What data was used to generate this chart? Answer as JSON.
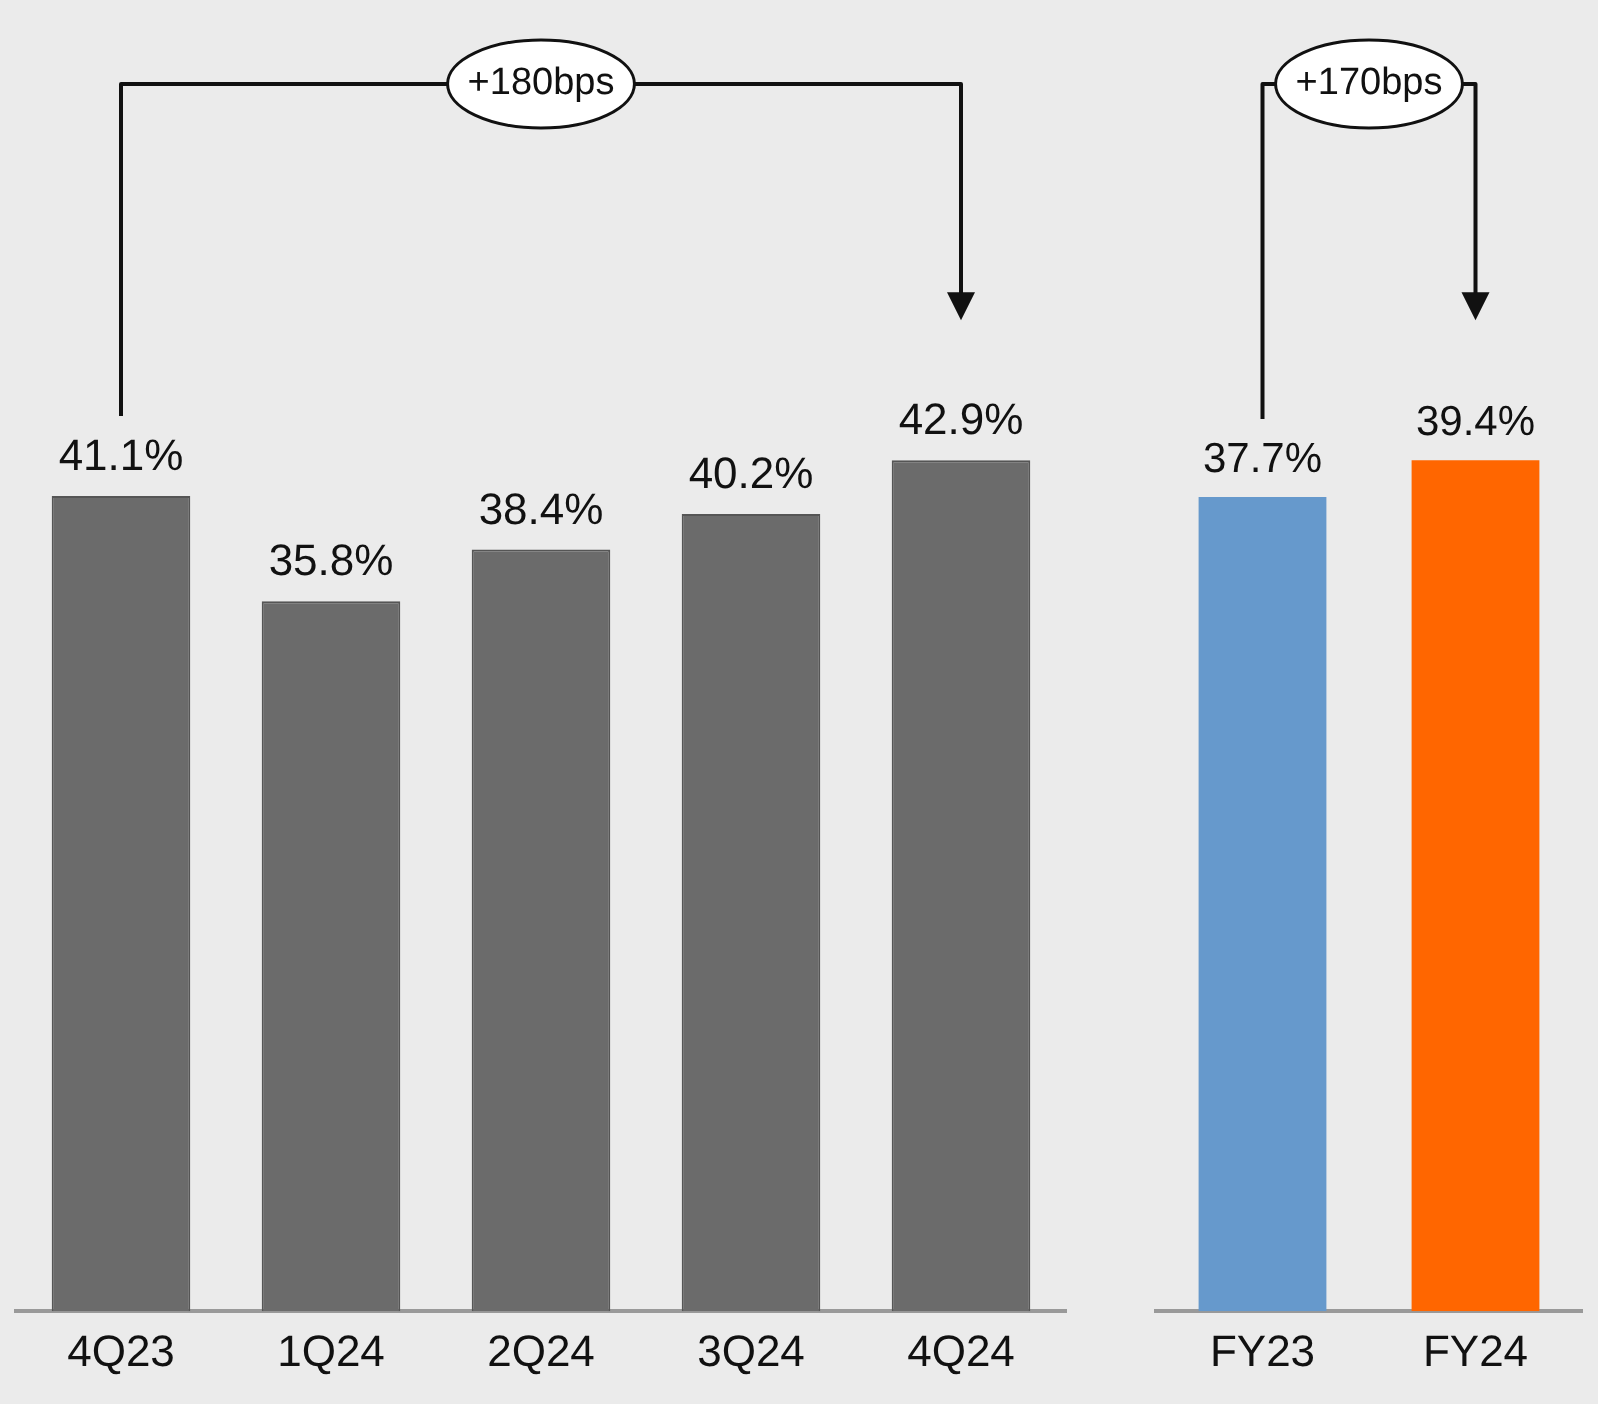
{
  "chart_data": [
    {
      "type": "bar",
      "categories": [
        "4Q23",
        "1Q24",
        "2Q24",
        "3Q24",
        "4Q24"
      ],
      "values": [
        41.1,
        35.8,
        38.4,
        40.2,
        42.9
      ],
      "colors": [
        "#6b6b6b",
        "#6b6b6b",
        "#6b6b6b",
        "#6b6b6b",
        "#6b6b6b"
      ],
      "value_labels": [
        "41.1%",
        "35.8%",
        "38.4%",
        "40.2%",
        "42.9%"
      ],
      "annotations": [
        "+180bps"
      ],
      "tick_labels": "x",
      "grid": false,
      "legend": false
    },
    {
      "type": "bar",
      "categories": [
        "FY23",
        "FY24"
      ],
      "values": [
        37.7,
        39.4
      ],
      "colors": [
        "#6699cc",
        "#ff6600"
      ],
      "value_labels": [
        "37.7%",
        "39.4%"
      ],
      "annotations": [
        "+170bps"
      ],
      "tick_labels": "x",
      "grid": false,
      "legend": false
    }
  ]
}
